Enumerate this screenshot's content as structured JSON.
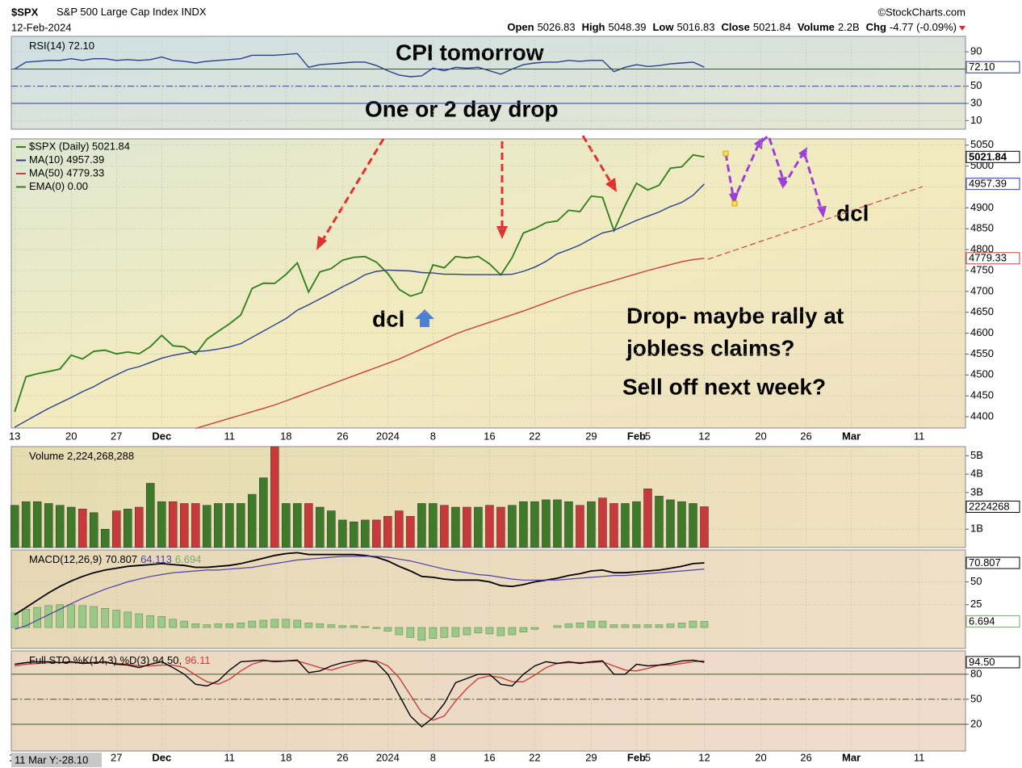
{
  "header": {
    "symbol": "$SPX",
    "name": "S&P 500 Large Cap Index",
    "exchange": "INDX",
    "date": "12-Feb-2024",
    "source": "©StockCharts.com",
    "quote": [
      {
        "label": "Open",
        "value": "5026.83"
      },
      {
        "label": "High",
        "value": "5048.39"
      },
      {
        "label": "Low",
        "value": "5016.83"
      },
      {
        "label": "Close",
        "value": "5021.84"
      },
      {
        "label": "Volume",
        "value": "2.2B"
      },
      {
        "label": "Chg",
        "value": "-4.77 (-0.09%)"
      }
    ],
    "cursor": "11 Mar Y:-28.10"
  },
  "annotations": [
    "CPI tomorrow",
    "One or 2 day drop",
    "dcl",
    "Drop- maybe rally at",
    "jobless claims?",
    "Sell off next week?",
    "dcl"
  ],
  "chart_data": [
    {
      "type": "line",
      "title": "RSI(14) 72.10",
      "ylim": [
        0,
        108
      ],
      "yticks": [
        90,
        50,
        30,
        10
      ],
      "levels": [
        70,
        30
      ],
      "midline": 50,
      "series": [
        {
          "color": "#2b3f8f",
          "values": [
            70,
            78,
            79,
            80,
            80,
            82,
            80,
            82,
            82,
            80,
            81,
            80,
            81,
            84,
            80,
            79,
            77,
            79,
            80,
            81,
            82,
            86,
            86,
            86,
            87,
            88,
            72,
            75,
            76,
            77,
            78,
            78,
            74,
            68,
            63,
            61,
            62,
            71,
            68,
            72,
            71,
            72,
            68,
            64,
            70,
            75,
            77,
            78,
            78,
            80,
            79,
            80,
            80,
            67,
            72,
            75,
            73,
            74,
            76,
            77,
            78,
            72.1
          ]
        }
      ],
      "markers": [
        {
          "value": 72.1,
          "label": "72.10",
          "color": "#2b3f8f"
        }
      ]
    },
    {
      "type": "line",
      "title": "$SPX (Daily) 5021.84",
      "xlim": [
        -0.3,
        84.1
      ],
      "xticks": [
        {
          "value": 0,
          "label": "13"
        },
        {
          "value": 5,
          "label": "20"
        },
        {
          "value": 9,
          "label": "27"
        },
        {
          "value": 13,
          "label": "Dec"
        },
        {
          "value": 19,
          "label": "11"
        },
        {
          "value": 24,
          "label": "18"
        },
        {
          "value": 29,
          "label": "26"
        },
        {
          "value": 33,
          "label": "2024"
        },
        {
          "value": 37,
          "label": "8"
        },
        {
          "value": 42,
          "label": "16"
        },
        {
          "value": 46,
          "label": "22"
        },
        {
          "value": 51,
          "label": "29"
        },
        {
          "value": 55,
          "label": "Feb"
        },
        {
          "value": 56,
          "label": "5"
        },
        {
          "value": 61,
          "label": "12"
        },
        {
          "value": 66,
          "label": "20"
        },
        {
          "value": 70,
          "label": "26"
        },
        {
          "value": 74,
          "label": "Mar"
        },
        {
          "value": 80,
          "label": "11"
        }
      ],
      "ylim": [
        4373,
        5065
      ],
      "yticks": [
        5050,
        5000,
        4950,
        4900,
        4850,
        4800,
        4750,
        4700,
        4650,
        4600,
        4550,
        4500,
        4450,
        4400
      ],
      "legend": [
        {
          "label": "$SPX (Daily) 5021.84",
          "color": "#2f7d1c"
        },
        {
          "label": "MA(10) 4957.39",
          "color": "#2b3f8f"
        },
        {
          "label": "MA(50) 4779.33",
          "color": "#c8403a"
        },
        {
          "label": "EMA(0) 0.00",
          "color": "#2f7d1c"
        }
      ],
      "series": [
        {
          "color": "#2f7d1c",
          "values": [
            4411.55,
            4495.7,
            4502.88,
            4508.24,
            4514.02,
            4547.38,
            4538.19,
            4556.62,
            4559.34,
            4550.43,
            4554.89,
            4550.58,
            4567.8,
            4594.63,
            4569.78,
            4567.18,
            4549.34,
            4585.59,
            4604.37,
            4622.44,
            4643.7,
            4707.09,
            4719.55,
            4719.19,
            4740.56,
            4768.37,
            4698.35,
            4746.75,
            4754.63,
            4774.75,
            4781.58,
            4783.35,
            4769.83,
            4742.83,
            4704.81,
            4688.68,
            4697.24,
            4763.54,
            4756.5,
            4783.45,
            4780.24,
            4783.83,
            4765.98,
            4739.21,
            4780.94,
            4839.81,
            4850.43,
            4864.6,
            4868.55,
            4894.16,
            4890.97,
            4927.93,
            4924.97,
            4845.65,
            4906.19,
            4958.61,
            4942.81,
            4954.23,
            4995.06,
            4997.91,
            5026.61,
            5021.84
          ]
        },
        {
          "color": "#2b3f8f",
          "values": [
            4375,
            4390,
            4405,
            4420,
            4433,
            4446,
            4460,
            4472,
            4487,
            4500,
            4513,
            4520,
            4530,
            4540,
            4547,
            4552,
            4556,
            4558,
            4562,
            4567,
            4575,
            4590,
            4605,
            4620,
            4635,
            4655,
            4668,
            4682,
            4696,
            4711,
            4724,
            4740,
            4748,
            4751,
            4750,
            4749,
            4745,
            4744,
            4741,
            4741,
            4740,
            4740,
            4740,
            4740,
            4741,
            4748,
            4758,
            4772,
            4790,
            4800,
            4811,
            4826,
            4840,
            4846,
            4858,
            4870,
            4880,
            4890,
            4903,
            4913,
            4930,
            4957.39
          ]
        },
        {
          "color": "#c8403a",
          "values": [
            null,
            null,
            null,
            null,
            null,
            null,
            null,
            null,
            null,
            null,
            null,
            null,
            null,
            null,
            null,
            null,
            4372,
            4380,
            4388,
            4396,
            4404,
            4412,
            4420,
            4428,
            4438,
            4448,
            4458,
            4468,
            4478,
            4488,
            4498,
            4508,
            4518,
            4528,
            4538,
            4550,
            4562,
            4574,
            4586,
            4598,
            4608,
            4617,
            4626,
            4635,
            4644,
            4653,
            4663,
            4673,
            4683,
            4693,
            4702,
            4710,
            4718,
            4726,
            4734,
            4742,
            4750,
            4757,
            4764,
            4771,
            4776,
            4779.33
          ]
        }
      ],
      "markers": [
        {
          "value": 5021.84,
          "label": "5021.84",
          "color": "#000000"
        },
        {
          "value": 4957.39,
          "label": "4957.39",
          "color": "#2b3f8f"
        },
        {
          "value": 4779.33,
          "label": "4779.33",
          "color": "#c8403a"
        }
      ]
    },
    {
      "type": "bar",
      "title": "Volume 2,224,268,288",
      "up_color": "#3f7a2a",
      "down_color": "#c83a3a",
      "ylim": [
        0,
        5500000000
      ],
      "yticks": [
        {
          "value": 5000000000,
          "label": "5B"
        },
        {
          "value": 4000000000,
          "label": "4B"
        },
        {
          "value": 3000000000,
          "label": "3B"
        },
        {
          "value": 1000000000,
          "label": "1B"
        }
      ],
      "values": [
        2300000000,
        2500000000,
        2500000000,
        2400000000,
        2300000000,
        2200000000,
        2100000000,
        1900000000,
        1000000000,
        2000000000,
        2100000000,
        2200000000,
        3500000000,
        2500000000,
        2500000000,
        2400000000,
        2400000000,
        2300000000,
        2400000000,
        2400000000,
        2400000000,
        2900000000,
        3800000000,
        5500000000,
        2400000000,
        2400000000,
        2400000000,
        2200000000,
        2000000000,
        1500000000,
        1400000000,
        1500000000,
        1500000000,
        1700000000,
        2000000000,
        1700000000,
        2400000000,
        2400000000,
        2300000000,
        2200000000,
        2200000000,
        2200000000,
        2300000000,
        2200000000,
        2300000000,
        2500000000,
        2500000000,
        2600000000,
        2600000000,
        2500000000,
        2300000000,
        2500000000,
        2700000000,
        2400000000,
        2400000000,
        2500000000,
        3200000000,
        2800000000,
        2600000000,
        2500000000,
        2400000000,
        2224268288
      ],
      "markers": [
        {
          "value": 2224268288,
          "label": "2224268",
          "color": "#000000"
        }
      ]
    },
    {
      "type": "macd",
      "title": "MACD(12,26,9)",
      "title_values": [
        {
          "label": "70.807",
          "color": "#000000"
        },
        {
          "label": "64.113",
          "color": "#4a3fa8"
        },
        {
          "label": "6.694",
          "color": "#7aa86a"
        }
      ],
      "ylim": [
        -23,
        85
      ],
      "yticks": [
        50,
        25
      ],
      "series": [
        {
          "kind": "histogram",
          "color": "#9cc98a",
          "values": [
            16,
            20,
            22,
            24,
            25,
            25,
            24,
            23,
            21,
            19,
            17,
            15,
            13,
            12,
            9,
            7,
            4,
            3,
            4,
            4,
            5,
            7,
            8,
            9,
            9,
            8,
            5,
            4,
            3,
            2,
            2,
            1,
            -1,
            -4,
            -8,
            -11,
            -14,
            -12,
            -11,
            -10,
            -8,
            -6,
            -7,
            -9,
            -8,
            -5,
            -2,
            0,
            2,
            4,
            5,
            7,
            7,
            3,
            3,
            3,
            3,
            3,
            4,
            5,
            7,
            6.694
          ]
        },
        {
          "kind": "line",
          "color": "#000000",
          "values": [
            14,
            22,
            30,
            38,
            45,
            51,
            56,
            60,
            63,
            65,
            67,
            68,
            69,
            70,
            69,
            68,
            66,
            66,
            67,
            68,
            70,
            73,
            76,
            79,
            81,
            82,
            80,
            80,
            80,
            80,
            80,
            79,
            77,
            73,
            67,
            62,
            56,
            55,
            53,
            52,
            52,
            52,
            50,
            46,
            45,
            47,
            50,
            52,
            54,
            57,
            59,
            62,
            63,
            60,
            60,
            61,
            62,
            63,
            65,
            67,
            70,
            70.807
          ]
        },
        {
          "kind": "line",
          "color": "#4a3fa8",
          "values": [
            -2,
            2,
            8,
            14,
            20,
            26,
            32,
            37,
            42,
            46,
            50,
            53,
            56,
            58,
            60,
            61,
            62,
            63,
            63,
            64,
            65,
            66,
            68,
            70,
            72,
            74,
            75,
            76,
            77,
            78,
            78,
            78,
            78,
            77,
            75,
            73,
            70,
            67,
            64,
            62,
            60,
            58,
            57,
            55,
            53,
            52,
            52,
            52,
            52,
            53,
            54,
            55,
            56,
            57,
            57,
            58,
            59,
            60,
            61,
            62,
            63,
            64.113
          ]
        }
      ],
      "markers": [
        {
          "value": 70.807,
          "label": "70.807",
          "color": "#000000"
        },
        {
          "value": 6.694,
          "label": "6.694",
          "color": "#7aa86a"
        }
      ]
    },
    {
      "type": "line",
      "title": "Full STO %K(14,3) %D(3) 94.50,",
      "title_values": [
        {
          "label": "96.11",
          "color": "#c8403a"
        }
      ],
      "ylim": [
        -12,
        108
      ],
      "yticks": [
        80,
        50,
        20
      ],
      "levels": [
        80,
        20
      ],
      "midline": 50,
      "series": [
        {
          "color": "#c8403a",
          "values": [
            90,
            92,
            93,
            94,
            94,
            94,
            94,
            94,
            94,
            93,
            92,
            90,
            90,
            91,
            91,
            88,
            79,
            71,
            68,
            74,
            84,
            92,
            96,
            96,
            96,
            96,
            92,
            88,
            85,
            89,
            93,
            96,
            96,
            90,
            76,
            55,
            34,
            25,
            30,
            48,
            63,
            75,
            78,
            76,
            71,
            71,
            79,
            88,
            93,
            94,
            94,
            94,
            95,
            90,
            85,
            84,
            87,
            91,
            91,
            93,
            95,
            96.11
          ]
        },
        {
          "color": "#000000",
          "values": [
            92,
            94,
            95,
            95,
            94,
            95,
            93,
            94,
            95,
            92,
            91,
            88,
            92,
            95,
            88,
            80,
            68,
            66,
            72,
            85,
            95,
            96,
            97,
            95,
            96,
            97,
            82,
            84,
            90,
            94,
            96,
            97,
            94,
            80,
            55,
            30,
            17,
            28,
            45,
            70,
            75,
            80,
            80,
            68,
            66,
            80,
            90,
            95,
            93,
            95,
            93,
            95,
            96,
            80,
            80,
            92,
            90,
            91,
            93,
            96,
            97,
            94.5
          ]
        }
      ],
      "markers": [
        {
          "value": 94.5,
          "label": "94.50",
          "color": "#000000"
        }
      ]
    }
  ]
}
